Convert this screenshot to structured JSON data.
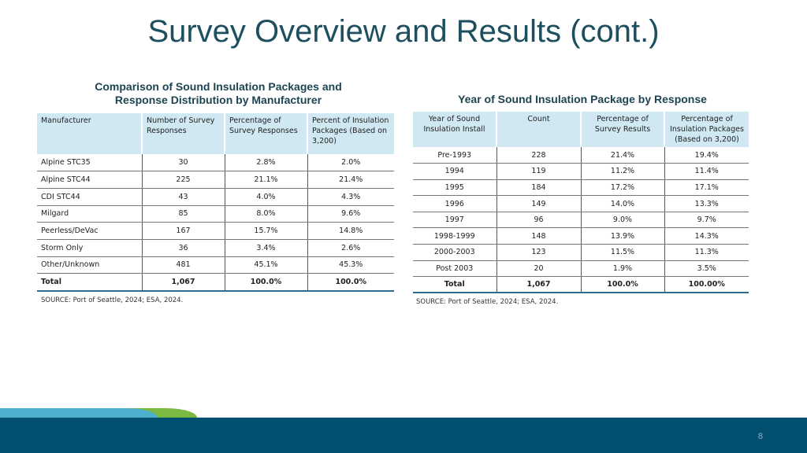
{
  "title": "Survey Overview and Results (cont.)",
  "table1": {
    "title_line1": "Comparison of Sound Insulation Packages and",
    "title_line2": "Response Distribution by Manufacturer",
    "headers": [
      "Manufacturer",
      "Number of Survey Responses",
      "Percentage of Survey Responses",
      "Percent of Insulation Packages (Based on 3,200)"
    ],
    "rows": [
      [
        "Alpine STC35",
        "30",
        "2.8%",
        "2.0%"
      ],
      [
        "Alpine STC44",
        "225",
        "21.1%",
        "21.4%"
      ],
      [
        "CDI STC44",
        "43",
        "4.0%",
        "4.3%"
      ],
      [
        "Milgard",
        "85",
        "8.0%",
        "9.6%"
      ],
      [
        "Peerless/DeVac",
        "167",
        "15.7%",
        "14.8%"
      ],
      [
        "Storm Only",
        "36",
        "3.4%",
        "2.6%"
      ],
      [
        "Other/Unknown",
        "481",
        "45.1%",
        "45.3%"
      ]
    ],
    "total": [
      "Total",
      "1,067",
      "100.0%",
      "100.0%"
    ],
    "source": "SOURCE: Port of Seattle, 2024; ESA, 2024."
  },
  "table2": {
    "title": "Year of Sound Insulation Package by Response",
    "headers": [
      "Year of Sound Insulation Install",
      "Count",
      "Percentage of Survey Results",
      "Percentage of Insulation Packages (Based on 3,200)"
    ],
    "rows": [
      [
        "Pre-1993",
        "228",
        "21.4%",
        "19.4%"
      ],
      [
        "1994",
        "119",
        "11.2%",
        "11.4%"
      ],
      [
        "1995",
        "184",
        "17.2%",
        "17.1%"
      ],
      [
        "1996",
        "149",
        "14.0%",
        "13.3%"
      ],
      [
        "1997",
        "96",
        "9.0%",
        "9.7%"
      ],
      [
        "1998-1999",
        "148",
        "13.9%",
        "14.3%"
      ],
      [
        "2000-2003",
        "123",
        "11.5%",
        "11.3%"
      ],
      [
        "Post 2003",
        "20",
        "1.9%",
        "3.5%"
      ]
    ],
    "total": [
      "Total",
      "1,067",
      "100.0%",
      "100.00%"
    ],
    "source": "SOURCE: Port of Seattle, 2024; ESA, 2024."
  },
  "page_number": "8"
}
